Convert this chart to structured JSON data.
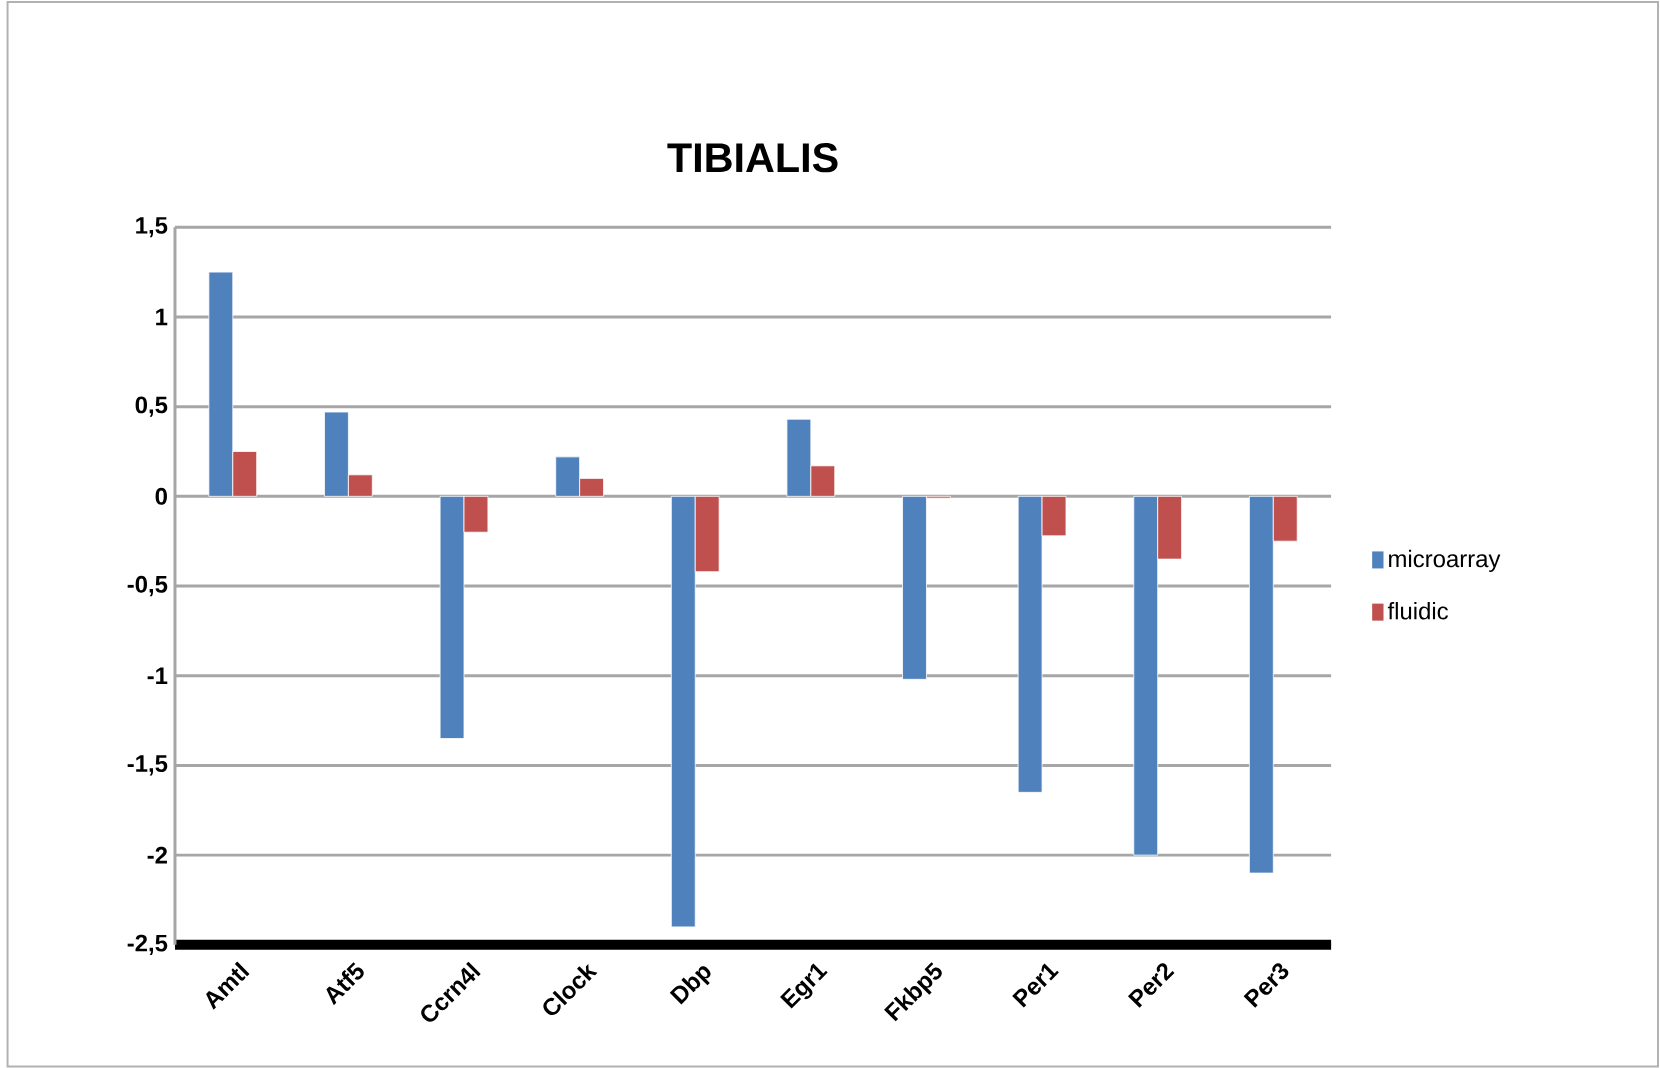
{
  "chart_data": {
    "type": "bar",
    "title": "TIBIALIS",
    "categories": [
      "Amtl",
      "Atf5",
      "Ccrn4l",
      "Clock",
      "Dbp",
      "Egr1",
      "Fkbp5",
      "Per1",
      "Per2",
      "Per3"
    ],
    "series": [
      {
        "name": "microarray",
        "color": "#4f81bd",
        "values": [
          1.25,
          0.47,
          -1.35,
          0.22,
          -2.4,
          0.43,
          -1.02,
          -1.65,
          -2.0,
          -2.1
        ]
      },
      {
        "name": "fluidic",
        "color": "#c0504d",
        "values": [
          0.25,
          0.12,
          -0.2,
          0.1,
          -0.42,
          0.17,
          -0.01,
          -0.22,
          -0.35,
          -0.25
        ]
      }
    ],
    "ylim": [
      -2.5,
      1.5
    ],
    "yticks": [
      {
        "value": -2.5,
        "label": "-2,5"
      },
      {
        "value": -2,
        "label": "-2"
      },
      {
        "value": -1.5,
        "label": "-1,5"
      },
      {
        "value": -1,
        "label": "-1"
      },
      {
        "value": -0.5,
        "label": "-0,5"
      },
      {
        "value": 0,
        "label": "0"
      },
      {
        "value": 0.5,
        "label": "0,5"
      },
      {
        "value": 1,
        "label": "1"
      },
      {
        "value": 1.5,
        "label": "1,5"
      }
    ],
    "grid": "y",
    "legend": "right"
  }
}
